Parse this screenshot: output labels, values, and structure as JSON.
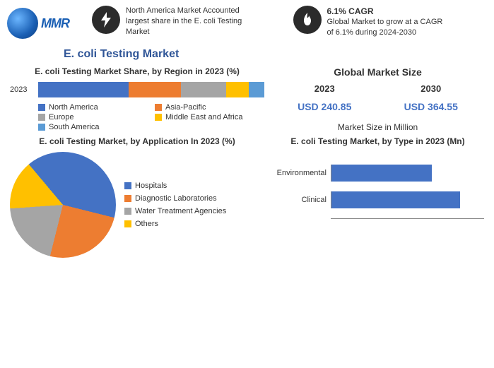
{
  "logo": {
    "text": "MMR"
  },
  "info_left": {
    "lines": "North America Market Accounted largest share in the E. coli Testing Market"
  },
  "info_right": {
    "headline": "6.1% CAGR",
    "lines": "Global Market to grow at a CAGR of 6.1% during 2024-2030"
  },
  "main_title": "E. coli Testing Market",
  "region_chart": {
    "type": "stacked-bar",
    "title": "E. coli Testing Market Share, by Region in 2023 (%)",
    "row_label": "2023",
    "background_color": "#ffffff",
    "segments": [
      {
        "name": "North America",
        "pct": 40,
        "color": "#4472c4"
      },
      {
        "name": "Asia-Pacific",
        "pct": 23,
        "color": "#ed7d31"
      },
      {
        "name": "Europe",
        "pct": 20,
        "color": "#a5a5a5"
      },
      {
        "name": "Middle East and Africa",
        "pct": 10,
        "color": "#ffc000"
      },
      {
        "name": "South America",
        "pct": 7,
        "color": "#5b9bd5"
      }
    ]
  },
  "global_size": {
    "title": "Global Market Size",
    "y2023_label": "2023",
    "y2030_label": "2030",
    "y2023_value": "USD 240.85",
    "y2030_value": "USD 364.55",
    "unit_note": "Market Size in Million",
    "value_color": "#4472c4"
  },
  "application_chart": {
    "type": "pie",
    "title": "E. coli Testing Market, by Application In 2023 (%)",
    "slices": [
      {
        "name": "Hospitals",
        "pct": 40,
        "color": "#4472c4"
      },
      {
        "name": "Diagnostic Laboratories",
        "pct": 25,
        "color": "#ed7d31"
      },
      {
        "name": "Water Treatment Agencies",
        "pct": 20,
        "color": "#a5a5a5"
      },
      {
        "name": "Others",
        "pct": 15,
        "color": "#ffc000"
      }
    ]
  },
  "type_chart": {
    "type": "hbar",
    "title": "E. coli Testing Market, by Type in 2023 (Mn)",
    "bar_color": "#4472c4",
    "axis_color": "#888888",
    "xmax": 160,
    "bars": [
      {
        "name": "Environmental",
        "value": 105
      },
      {
        "name": "Clinical",
        "value": 135
      }
    ]
  },
  "font": {
    "title_size": 12,
    "label_size": 11
  }
}
